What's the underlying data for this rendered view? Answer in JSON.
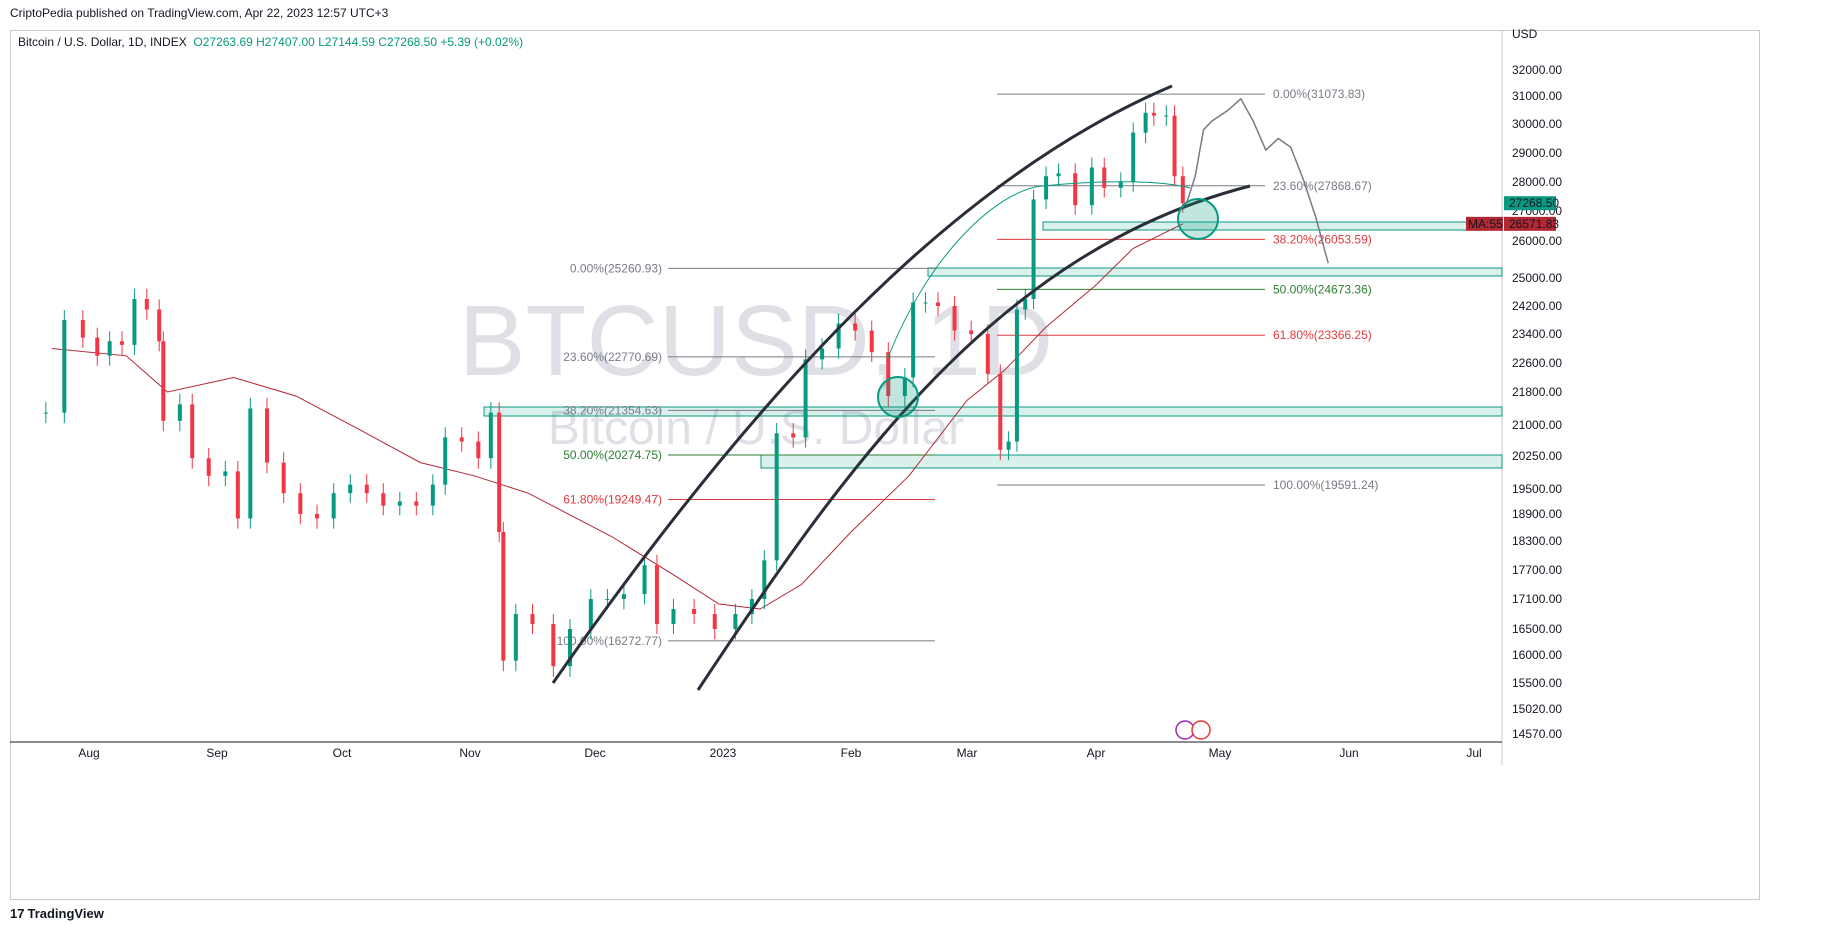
{
  "publisher": "CriptoPedia published on TradingView.com, Apr 22, 2023 12:57 UTC+3",
  "legend": {
    "symbol": "Bitcoin / U.S. Dollar, 1D, INDEX",
    "open": "O27263.69",
    "high": "H27407.00",
    "low": "L27144.59",
    "close": "C27268.50",
    "change": "+5.39 (+0.02%)"
  },
  "watermark": {
    "symbol": "BTCUSD, 1D",
    "name": "Bitcoin / U.S. Dollar"
  },
  "footer": {
    "logo": "17",
    "brand": "TradingView"
  },
  "colors": {
    "up": "#089981",
    "down": "#f23645",
    "ma": "#b22833",
    "fib_red": "#e03a3e",
    "fib_green": "#2e7d32",
    "fib_gray": "#787b86",
    "zone": "#089981"
  },
  "chart_data": {
    "type": "candlestick",
    "currency": "USD",
    "y_ticks": [
      "32000.00",
      "31000.00",
      "30000.00",
      "29000.00",
      "28000.00",
      "27000.00",
      "26000.00",
      "25000.00",
      "24200.00",
      "23400.00",
      "22600.00",
      "21800.00",
      "21000.00",
      "20250.00",
      "19500.00",
      "18900.00",
      "18300.00",
      "17700.00",
      "17100.00",
      "16500.00",
      "16000.00",
      "15500.00",
      "15020.00",
      "14570.00"
    ],
    "x_ticks": [
      "Aug",
      "Sep",
      "Oct",
      "Nov",
      "Dec",
      "2023",
      "Feb",
      "Mar",
      "Apr",
      "May",
      "Jun",
      "Jul"
    ],
    "price_label": "27268.50",
    "ma_label": "MA:55",
    "ma_value": "26571.83",
    "fib_sets": [
      {
        "levels": [
          {
            "text": "0.00%(25260.93)",
            "price": 25260.93,
            "color": "gray"
          },
          {
            "text": "23.60%(22770.69)",
            "price": 22770.69,
            "color": "gray"
          },
          {
            "text": "38.20%(21354.63)",
            "price": 21354.63,
            "color": "gray"
          },
          {
            "text": "50.00%(20274.75)",
            "price": 20274.75,
            "color": "green"
          },
          {
            "text": "61.80%(19249.47)",
            "price": 19249.47,
            "color": "red"
          },
          {
            "text": "100.00%(16272.77)",
            "price": 16272.77,
            "color": "gray"
          }
        ]
      },
      {
        "levels": [
          {
            "text": "0.00%(31073.83)",
            "price": 31073.83,
            "color": "gray"
          },
          {
            "text": "23.60%(27868.67)",
            "price": 27868.67,
            "color": "gray"
          },
          {
            "text": "38.20%(26053.59)",
            "price": 26053.59,
            "color": "red"
          },
          {
            "text": "50.00%(24673.36)",
            "price": 24673.36,
            "color": "green"
          },
          {
            "text": "61.80%(23366.25)",
            "price": 23366.25,
            "color": "red"
          },
          {
            "text": "100.00%(19591.24)",
            "price": 19591.24,
            "color": "gray"
          }
        ]
      }
    ],
    "ma_series": [
      [
        "2022-07-26",
        23000
      ],
      [
        "2022-08-10",
        22800
      ],
      [
        "2022-08-20",
        21800
      ],
      [
        "2022-09-05",
        22200
      ],
      [
        "2022-09-20",
        21700
      ],
      [
        "2022-10-05",
        20900
      ],
      [
        "2022-10-20",
        20100
      ],
      [
        "2022-11-02",
        19800
      ],
      [
        "2022-11-15",
        19400
      ],
      [
        "2022-12-05",
        18400
      ],
      [
        "2022-12-20",
        17600
      ],
      [
        "2022-12-31",
        17000
      ],
      [
        "2023-01-10",
        16900
      ],
      [
        "2023-01-20",
        17400
      ],
      [
        "2023-02-01",
        18500
      ],
      [
        "2023-02-15",
        19800
      ],
      [
        "2023-03-01",
        21600
      ],
      [
        "2023-03-10",
        22400
      ],
      [
        "2023-03-20",
        23600
      ],
      [
        "2023-04-01",
        24800
      ],
      [
        "2023-04-10",
        25800
      ],
      [
        "2023-04-22",
        26571.83
      ]
    ],
    "closes": [
      [
        "2022-07-25",
        21300
      ],
      [
        "2022-07-28",
        23800
      ],
      [
        "2022-07-31",
        23300
      ],
      [
        "2022-08-03",
        22800
      ],
      [
        "2022-08-06",
        23200
      ],
      [
        "2022-08-09",
        23100
      ],
      [
        "2022-08-12",
        24400
      ],
      [
        "2022-08-15",
        24100
      ],
      [
        "2022-08-18",
        23200
      ],
      [
        "2022-08-19",
        21100
      ],
      [
        "2022-08-23",
        21500
      ],
      [
        "2022-08-26",
        20200
      ],
      [
        "2022-08-30",
        19800
      ],
      [
        "2022-09-03",
        19900
      ],
      [
        "2022-09-06",
        18800
      ],
      [
        "2022-09-09",
        21400
      ],
      [
        "2022-09-13",
        20100
      ],
      [
        "2022-09-17",
        19400
      ],
      [
        "2022-09-21",
        18900
      ],
      [
        "2022-09-25",
        18800
      ],
      [
        "2022-09-29",
        19400
      ],
      [
        "2022-10-03",
        19600
      ],
      [
        "2022-10-07",
        19400
      ],
      [
        "2022-10-11",
        19100
      ],
      [
        "2022-10-15",
        19200
      ],
      [
        "2022-10-19",
        19100
      ],
      [
        "2022-10-23",
        19600
      ],
      [
        "2022-10-26",
        20700
      ],
      [
        "2022-10-30",
        20600
      ],
      [
        "2022-11-03",
        20200
      ],
      [
        "2022-11-06",
        21300
      ],
      [
        "2022-11-08",
        18500
      ],
      [
        "2022-11-09",
        15900
      ],
      [
        "2022-11-12",
        16800
      ],
      [
        "2022-11-16",
        16600
      ],
      [
        "2022-11-21",
        15800
      ],
      [
        "2022-11-25",
        16500
      ],
      [
        "2022-11-30",
        17100
      ],
      [
        "2022-12-04",
        17100
      ],
      [
        "2022-12-08",
        17200
      ],
      [
        "2022-12-13",
        17800
      ],
      [
        "2022-12-16",
        16600
      ],
      [
        "2022-12-20",
        16900
      ],
      [
        "2022-12-25",
        16800
      ],
      [
        "2022-12-30",
        16500
      ],
      [
        "2023-01-04",
        16800
      ],
      [
        "2023-01-08",
        17100
      ],
      [
        "2023-01-11",
        17900
      ],
      [
        "2023-01-14",
        20800
      ],
      [
        "2023-01-18",
        20700
      ],
      [
        "2023-01-21",
        22700
      ],
      [
        "2023-01-25",
        23000
      ],
      [
        "2023-01-29",
        23700
      ],
      [
        "2023-02-02",
        23500
      ],
      [
        "2023-02-06",
        22900
      ],
      [
        "2023-02-10",
        21700
      ],
      [
        "2023-02-14",
        22200
      ],
      [
        "2023-02-16",
        24300
      ],
      [
        "2023-02-19",
        24300
      ],
      [
        "2023-02-22",
        24200
      ],
      [
        "2023-02-26",
        23500
      ],
      [
        "2023-03-02",
        23400
      ],
      [
        "2023-03-06",
        22300
      ],
      [
        "2023-03-09",
        20400
      ],
      [
        "2023-03-11",
        20600
      ],
      [
        "2023-03-13",
        24100
      ],
      [
        "2023-03-15",
        24400
      ],
      [
        "2023-03-17",
        27400
      ],
      [
        "2023-03-20",
        28200
      ],
      [
        "2023-03-23",
        28300
      ],
      [
        "2023-03-27",
        27200
      ],
      [
        "2023-03-31",
        28500
      ],
      [
        "2023-04-03",
        27800
      ],
      [
        "2023-04-07",
        28000
      ],
      [
        "2023-04-10",
        29700
      ],
      [
        "2023-04-13",
        30400
      ],
      [
        "2023-04-15",
        30300
      ],
      [
        "2023-04-18",
        30300
      ],
      [
        "2023-04-20",
        28200
      ],
      [
        "2023-04-22",
        27268.5
      ]
    ],
    "projection": [
      [
        "2023-04-23",
        27300
      ],
      [
        "2023-04-25",
        28200
      ],
      [
        "2023-04-27",
        29800
      ],
      [
        "2023-04-29",
        30100
      ],
      [
        "2023-05-01",
        30300
      ],
      [
        "2023-05-03",
        30500
      ],
      [
        "2023-05-06",
        30900
      ],
      [
        "2023-05-09",
        30100
      ],
      [
        "2023-05-12",
        29100
      ],
      [
        "2023-05-15",
        29500
      ],
      [
        "2023-05-18",
        29200
      ],
      [
        "2023-05-21",
        28100
      ],
      [
        "2023-05-24",
        26800
      ],
      [
        "2023-05-27",
        25400
      ]
    ]
  }
}
